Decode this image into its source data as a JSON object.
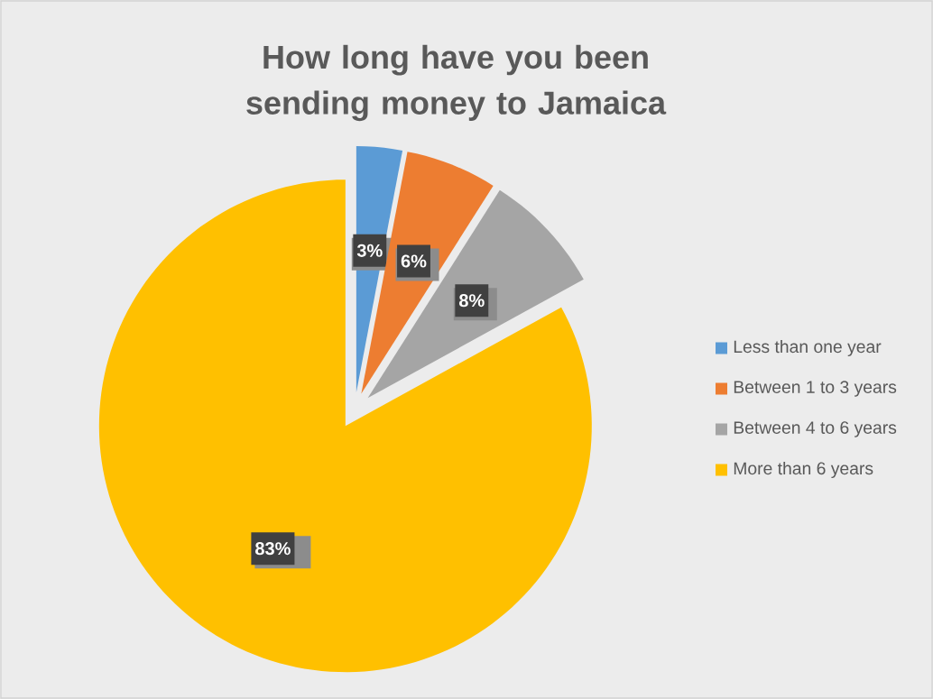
{
  "chart_data": {
    "type": "pie",
    "title": "How long have you been sending money to Jamaica",
    "categories": [
      "Less than one year",
      "Between 1 to 3 years",
      "Between 4 to 6 years",
      "More than 6 years"
    ],
    "values": [
      3,
      6,
      8,
      83
    ],
    "colors": [
      "#5b9bd5",
      "#ed7d31",
      "#a5a5a5",
      "#ffc000"
    ],
    "value_labels": [
      "3%",
      "6%",
      "8%",
      "83%"
    ],
    "legend": "right"
  }
}
